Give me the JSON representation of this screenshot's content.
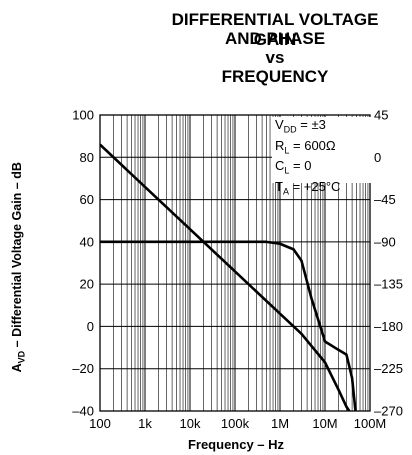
{
  "title_lines": [
    "DIFFERENTIAL VOLTAGE GAIN",
    "AND PHASE",
    "vs",
    "FREQUENCY"
  ],
  "chart_data": {
    "type": "line",
    "title": "DIFFERENTIAL VOLTAGE GAIN AND PHASE vs FREQUENCY",
    "xlabel": "Frequency – Hz",
    "ylabel_left": "AVD – Differential Voltage Gain – dB",
    "ylabel_right": "",
    "x_scale": "log",
    "xlim": [
      100,
      100000000
    ],
    "ylim_left": [
      -40,
      100
    ],
    "ylim_right": [
      -270,
      45
    ],
    "x_tick_labels": [
      "100",
      "1k",
      "10k",
      "100k",
      "1M",
      "10M",
      "100M"
    ],
    "x_tick_values": [
      100,
      1000,
      10000,
      100000,
      1000000,
      10000000,
      100000000
    ],
    "y_left_ticks": [
      100,
      80,
      60,
      40,
      20,
      0,
      -20,
      -40
    ],
    "y_left_tick_labels": [
      "100",
      "80",
      "60",
      "40",
      "20",
      "0",
      "–20",
      "–40"
    ],
    "y_right_ticks": [
      45,
      0,
      -45,
      -90,
      -135,
      -180,
      -225,
      -270
    ],
    "y_right_tick_labels": [
      "45",
      "0",
      "–45",
      "–90",
      "–135",
      "–180",
      "–225",
      "–270"
    ],
    "grid": true,
    "legend_placement": "top-right",
    "conditions": [
      {
        "main": "V",
        "sub": "DD",
        "rest": " = ±3"
      },
      {
        "main": "R",
        "sub": "L",
        "rest": " = 600Ω"
      },
      {
        "main": "C",
        "sub": "L",
        "rest": " = 0"
      },
      {
        "main": "T",
        "sub": "A",
        "rest": " = +25°C"
      }
    ],
    "series": [
      {
        "axis": "left",
        "x": [
          100,
          1000,
          10000,
          100000,
          1000000,
          3000000,
          10000000,
          20000000,
          30000000,
          40000000
        ],
        "values": [
          86,
          66,
          46,
          26,
          6,
          -3.5,
          -17,
          -30,
          -38,
          -42
        ]
      },
      {
        "axis": "right",
        "x": [
          100,
          100000,
          500000,
          1000000,
          2000000,
          3000000,
          5000000,
          10000000,
          20000000,
          30000000,
          40000000,
          50000000
        ],
        "values": [
          -90,
          -90,
          -90,
          -92,
          -98,
          -110,
          -150,
          -196,
          -205,
          -210,
          -235,
          -280
        ]
      }
    ]
  }
}
